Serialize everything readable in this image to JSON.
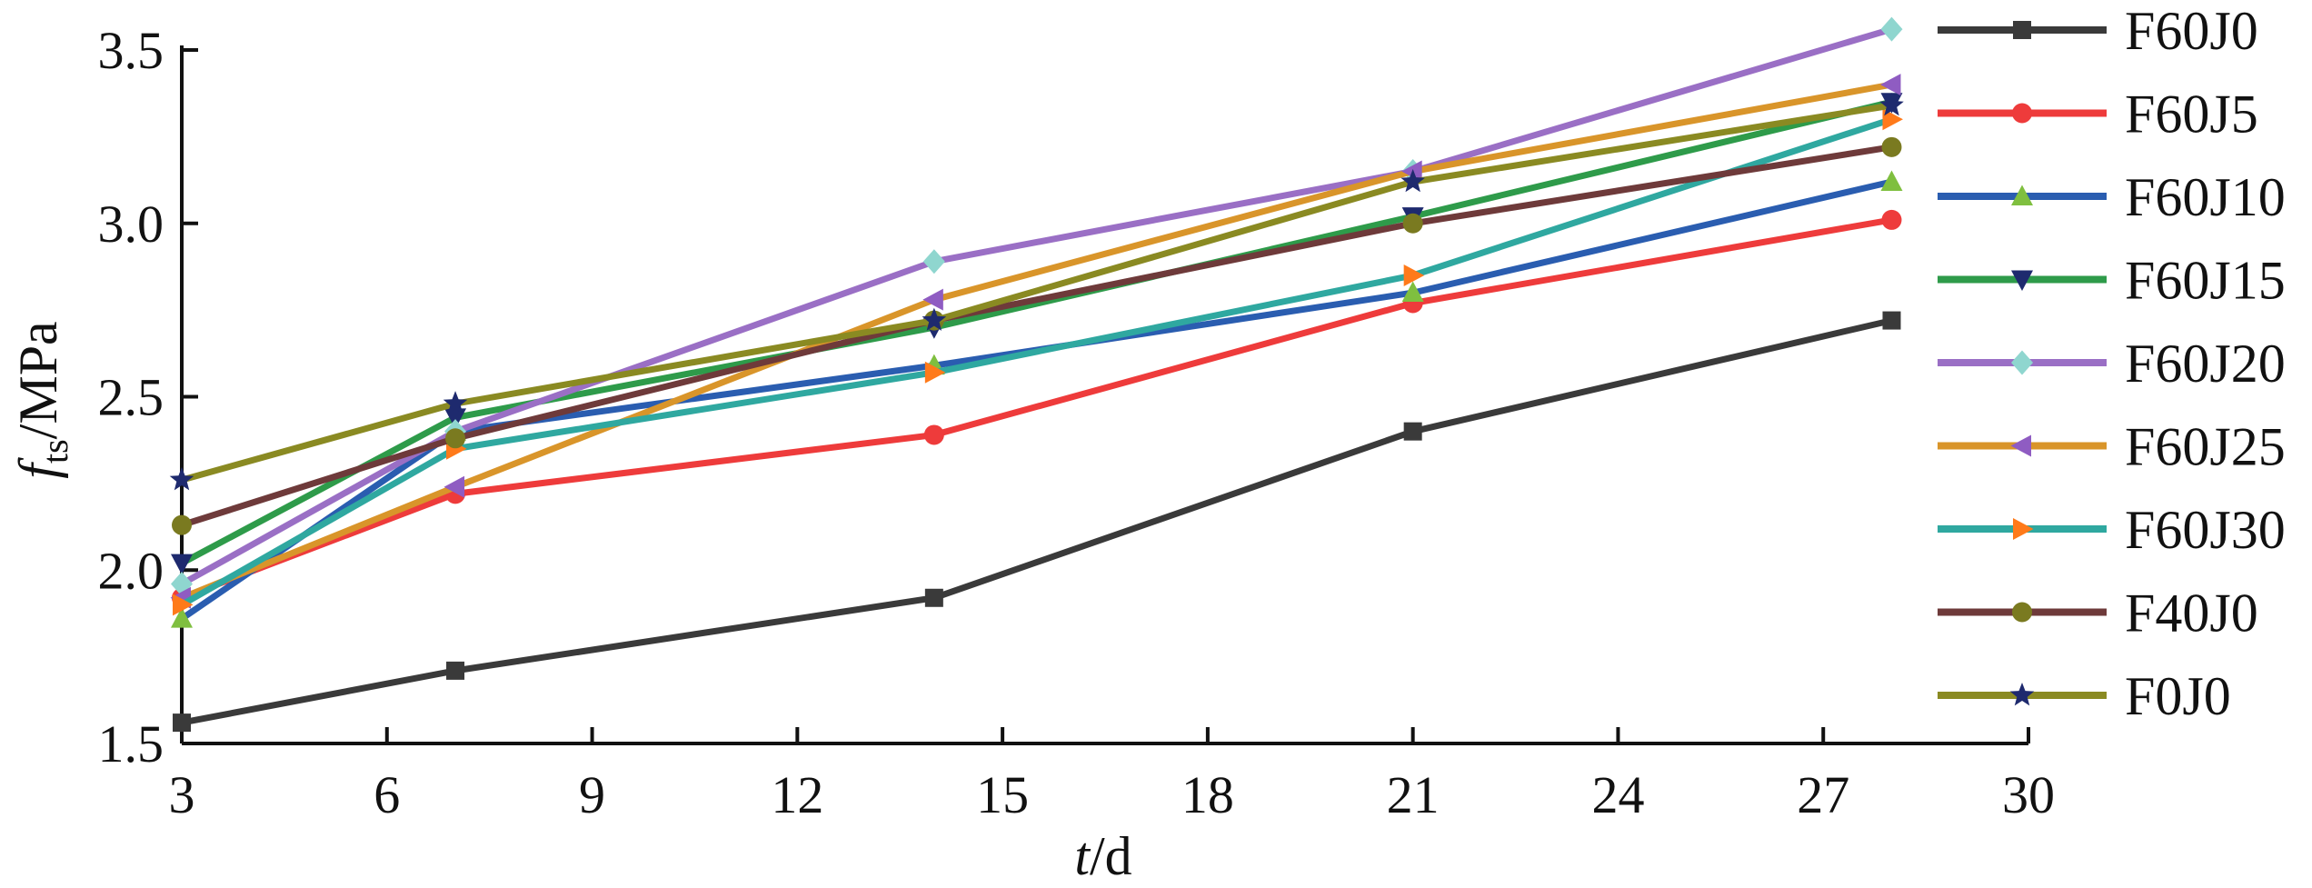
{
  "chart_data": {
    "type": "line",
    "xlabel": {
      "italic": "t",
      "text": "/d"
    },
    "ylabel": {
      "italic": "f",
      "subscript": "ts",
      "text": "/MPa"
    },
    "xlim": [
      3,
      30
    ],
    "ylim": [
      1.5,
      3.5
    ],
    "xticks": [
      "3",
      "6",
      "9",
      "12",
      "15",
      "18",
      "21",
      "24",
      "27",
      "30"
    ],
    "yticks": [
      "1.5",
      "2.0",
      "2.5",
      "3.0",
      "3.5"
    ],
    "x": [
      3,
      7,
      14,
      21,
      28
    ],
    "grid": false,
    "legend_position": "right",
    "series": [
      {
        "name": "F60J0",
        "color": "#3a3a3a",
        "marker": "square",
        "values": [
          1.56,
          1.71,
          1.92,
          2.4,
          2.72
        ]
      },
      {
        "name": "F60J5",
        "color": "#ee3b3b",
        "marker": "circle",
        "values": [
          1.92,
          2.22,
          2.39,
          2.77,
          3.01
        ]
      },
      {
        "name": "F60J10",
        "color": "#2a5db0",
        "marker": "triangle-up",
        "values": [
          1.86,
          2.4,
          2.59,
          2.8,
          3.12
        ]
      },
      {
        "name": "F60J15",
        "color": "#2e9b4a",
        "marker": "triangle-down",
        "values": [
          2.02,
          2.44,
          2.7,
          3.02,
          3.35
        ]
      },
      {
        "name": "F60J20",
        "color": "#9a6fc5",
        "marker": "diamond",
        "values": [
          1.96,
          2.4,
          2.89,
          3.15,
          3.56
        ]
      },
      {
        "name": "F60J25",
        "color": "#d9952a",
        "marker": "triangle-left",
        "values": [
          1.92,
          2.24,
          2.78,
          3.15,
          3.4
        ]
      },
      {
        "name": "F60J30",
        "color": "#2fa8a0",
        "marker": "triangle-right",
        "values": [
          1.9,
          2.35,
          2.57,
          2.85,
          3.3
        ]
      },
      {
        "name": "F40J0",
        "color": "#6e3a3a",
        "marker": "circle",
        "values": [
          2.13,
          2.38,
          2.72,
          3.0,
          3.22
        ]
      },
      {
        "name": "F0J0",
        "color": "#8a8a22",
        "marker": "star",
        "values": [
          2.26,
          2.48,
          2.72,
          3.12,
          3.34
        ]
      }
    ],
    "marker_fill_overrides": {
      "F60J10": "#7fbf3f",
      "F60J15": "#1e2a6e",
      "F60J20": "#8fd6cf",
      "F60J25": "#8f5cc2",
      "F60J30": "#ff7a1a",
      "F40J0": "#7a7a20",
      "F0J0": "#1e2a6e"
    }
  }
}
